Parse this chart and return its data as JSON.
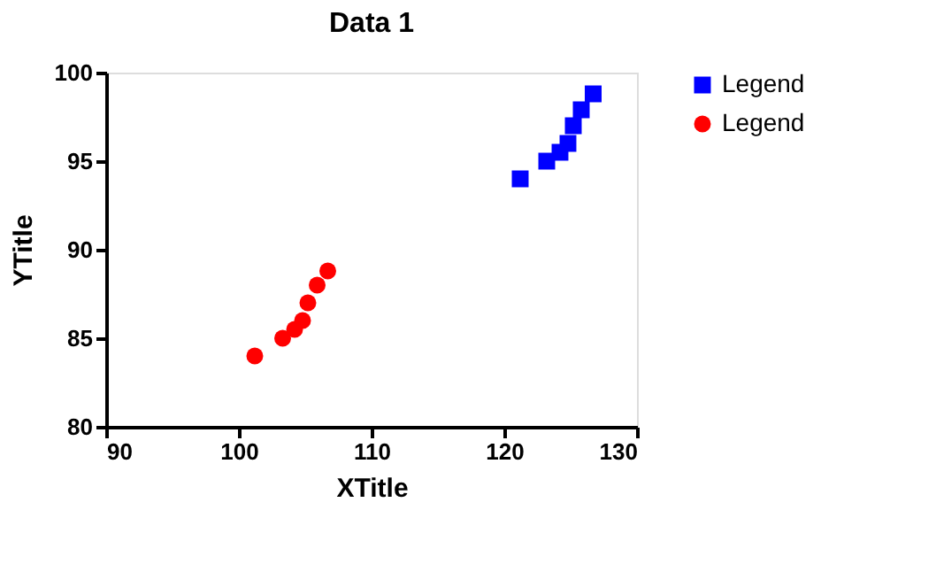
{
  "chart_data": {
    "type": "scatter",
    "title": "Data 1",
    "xlabel": "XTitle",
    "ylabel": "YTitle",
    "xlim": [
      90,
      130
    ],
    "xticks": [
      90,
      100,
      110,
      120,
      130
    ],
    "ylim": [
      80,
      100
    ],
    "yticks": [
      80,
      85,
      90,
      95,
      100
    ],
    "grid": false,
    "legend": "top right",
    "series": [
      {
        "name": "Legend",
        "color": "#0000ff",
        "marker": "square",
        "x": [
          121.2,
          123.2,
          124.2,
          124.8,
          125.2,
          125.8,
          126.7
        ],
        "values": [
          94.0,
          95.0,
          95.5,
          96.0,
          97.0,
          97.9,
          98.8
        ]
      },
      {
        "name": "Legend",
        "color": "#ff0000",
        "marker": "circle",
        "x": [
          101.2,
          103.3,
          104.2,
          104.8,
          105.2,
          105.9,
          106.7
        ],
        "values": [
          84.0,
          85.0,
          85.5,
          86.0,
          87.0,
          88.0,
          88.8
        ]
      }
    ]
  }
}
